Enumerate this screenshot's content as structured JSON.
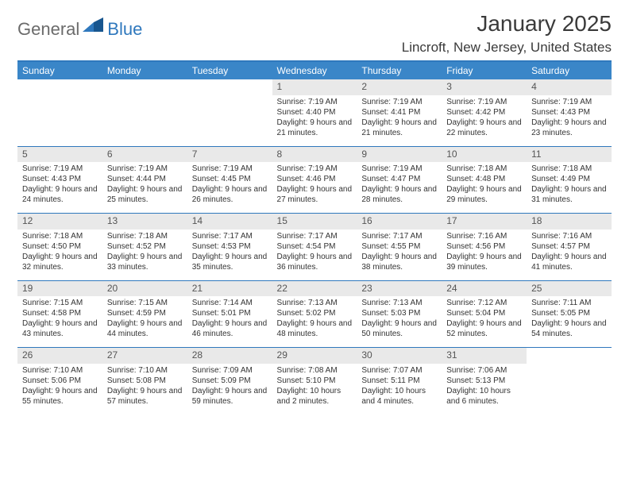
{
  "brand": {
    "part1": "General",
    "part2": "Blue",
    "color_primary": "#2f78bd",
    "color_dark": "#18568f"
  },
  "header": {
    "title": "January 2025",
    "location": "Lincroft, New Jersey, United States"
  },
  "colors": {
    "header_bg": "#3a86c8",
    "daynum_bg": "#e9e9e9",
    "rule": "#2f78bd",
    "text": "#333333"
  },
  "dayNames": [
    "Sunday",
    "Monday",
    "Tuesday",
    "Wednesday",
    "Thursday",
    "Friday",
    "Saturday"
  ],
  "weeks": [
    [
      null,
      null,
      null,
      {
        "n": "1",
        "sr": "7:19 AM",
        "ss": "4:40 PM",
        "dl": "9 hours and 21 minutes."
      },
      {
        "n": "2",
        "sr": "7:19 AM",
        "ss": "4:41 PM",
        "dl": "9 hours and 21 minutes."
      },
      {
        "n": "3",
        "sr": "7:19 AM",
        "ss": "4:42 PM",
        "dl": "9 hours and 22 minutes."
      },
      {
        "n": "4",
        "sr": "7:19 AM",
        "ss": "4:43 PM",
        "dl": "9 hours and 23 minutes."
      }
    ],
    [
      {
        "n": "5",
        "sr": "7:19 AM",
        "ss": "4:43 PM",
        "dl": "9 hours and 24 minutes."
      },
      {
        "n": "6",
        "sr": "7:19 AM",
        "ss": "4:44 PM",
        "dl": "9 hours and 25 minutes."
      },
      {
        "n": "7",
        "sr": "7:19 AM",
        "ss": "4:45 PM",
        "dl": "9 hours and 26 minutes."
      },
      {
        "n": "8",
        "sr": "7:19 AM",
        "ss": "4:46 PM",
        "dl": "9 hours and 27 minutes."
      },
      {
        "n": "9",
        "sr": "7:19 AM",
        "ss": "4:47 PM",
        "dl": "9 hours and 28 minutes."
      },
      {
        "n": "10",
        "sr": "7:18 AM",
        "ss": "4:48 PM",
        "dl": "9 hours and 29 minutes."
      },
      {
        "n": "11",
        "sr": "7:18 AM",
        "ss": "4:49 PM",
        "dl": "9 hours and 31 minutes."
      }
    ],
    [
      {
        "n": "12",
        "sr": "7:18 AM",
        "ss": "4:50 PM",
        "dl": "9 hours and 32 minutes."
      },
      {
        "n": "13",
        "sr": "7:18 AM",
        "ss": "4:52 PM",
        "dl": "9 hours and 33 minutes."
      },
      {
        "n": "14",
        "sr": "7:17 AM",
        "ss": "4:53 PM",
        "dl": "9 hours and 35 minutes."
      },
      {
        "n": "15",
        "sr": "7:17 AM",
        "ss": "4:54 PM",
        "dl": "9 hours and 36 minutes."
      },
      {
        "n": "16",
        "sr": "7:17 AM",
        "ss": "4:55 PM",
        "dl": "9 hours and 38 minutes."
      },
      {
        "n": "17",
        "sr": "7:16 AM",
        "ss": "4:56 PM",
        "dl": "9 hours and 39 minutes."
      },
      {
        "n": "18",
        "sr": "7:16 AM",
        "ss": "4:57 PM",
        "dl": "9 hours and 41 minutes."
      }
    ],
    [
      {
        "n": "19",
        "sr": "7:15 AM",
        "ss": "4:58 PM",
        "dl": "9 hours and 43 minutes."
      },
      {
        "n": "20",
        "sr": "7:15 AM",
        "ss": "4:59 PM",
        "dl": "9 hours and 44 minutes."
      },
      {
        "n": "21",
        "sr": "7:14 AM",
        "ss": "5:01 PM",
        "dl": "9 hours and 46 minutes."
      },
      {
        "n": "22",
        "sr": "7:13 AM",
        "ss": "5:02 PM",
        "dl": "9 hours and 48 minutes."
      },
      {
        "n": "23",
        "sr": "7:13 AM",
        "ss": "5:03 PM",
        "dl": "9 hours and 50 minutes."
      },
      {
        "n": "24",
        "sr": "7:12 AM",
        "ss": "5:04 PM",
        "dl": "9 hours and 52 minutes."
      },
      {
        "n": "25",
        "sr": "7:11 AM",
        "ss": "5:05 PM",
        "dl": "9 hours and 54 minutes."
      }
    ],
    [
      {
        "n": "26",
        "sr": "7:10 AM",
        "ss": "5:06 PM",
        "dl": "9 hours and 55 minutes."
      },
      {
        "n": "27",
        "sr": "7:10 AM",
        "ss": "5:08 PM",
        "dl": "9 hours and 57 minutes."
      },
      {
        "n": "28",
        "sr": "7:09 AM",
        "ss": "5:09 PM",
        "dl": "9 hours and 59 minutes."
      },
      {
        "n": "29",
        "sr": "7:08 AM",
        "ss": "5:10 PM",
        "dl": "10 hours and 2 minutes."
      },
      {
        "n": "30",
        "sr": "7:07 AM",
        "ss": "5:11 PM",
        "dl": "10 hours and 4 minutes."
      },
      {
        "n": "31",
        "sr": "7:06 AM",
        "ss": "5:13 PM",
        "dl": "10 hours and 6 minutes."
      },
      null
    ]
  ],
  "labels": {
    "sunrise": "Sunrise:",
    "sunset": "Sunset:",
    "daylight": "Daylight:"
  }
}
